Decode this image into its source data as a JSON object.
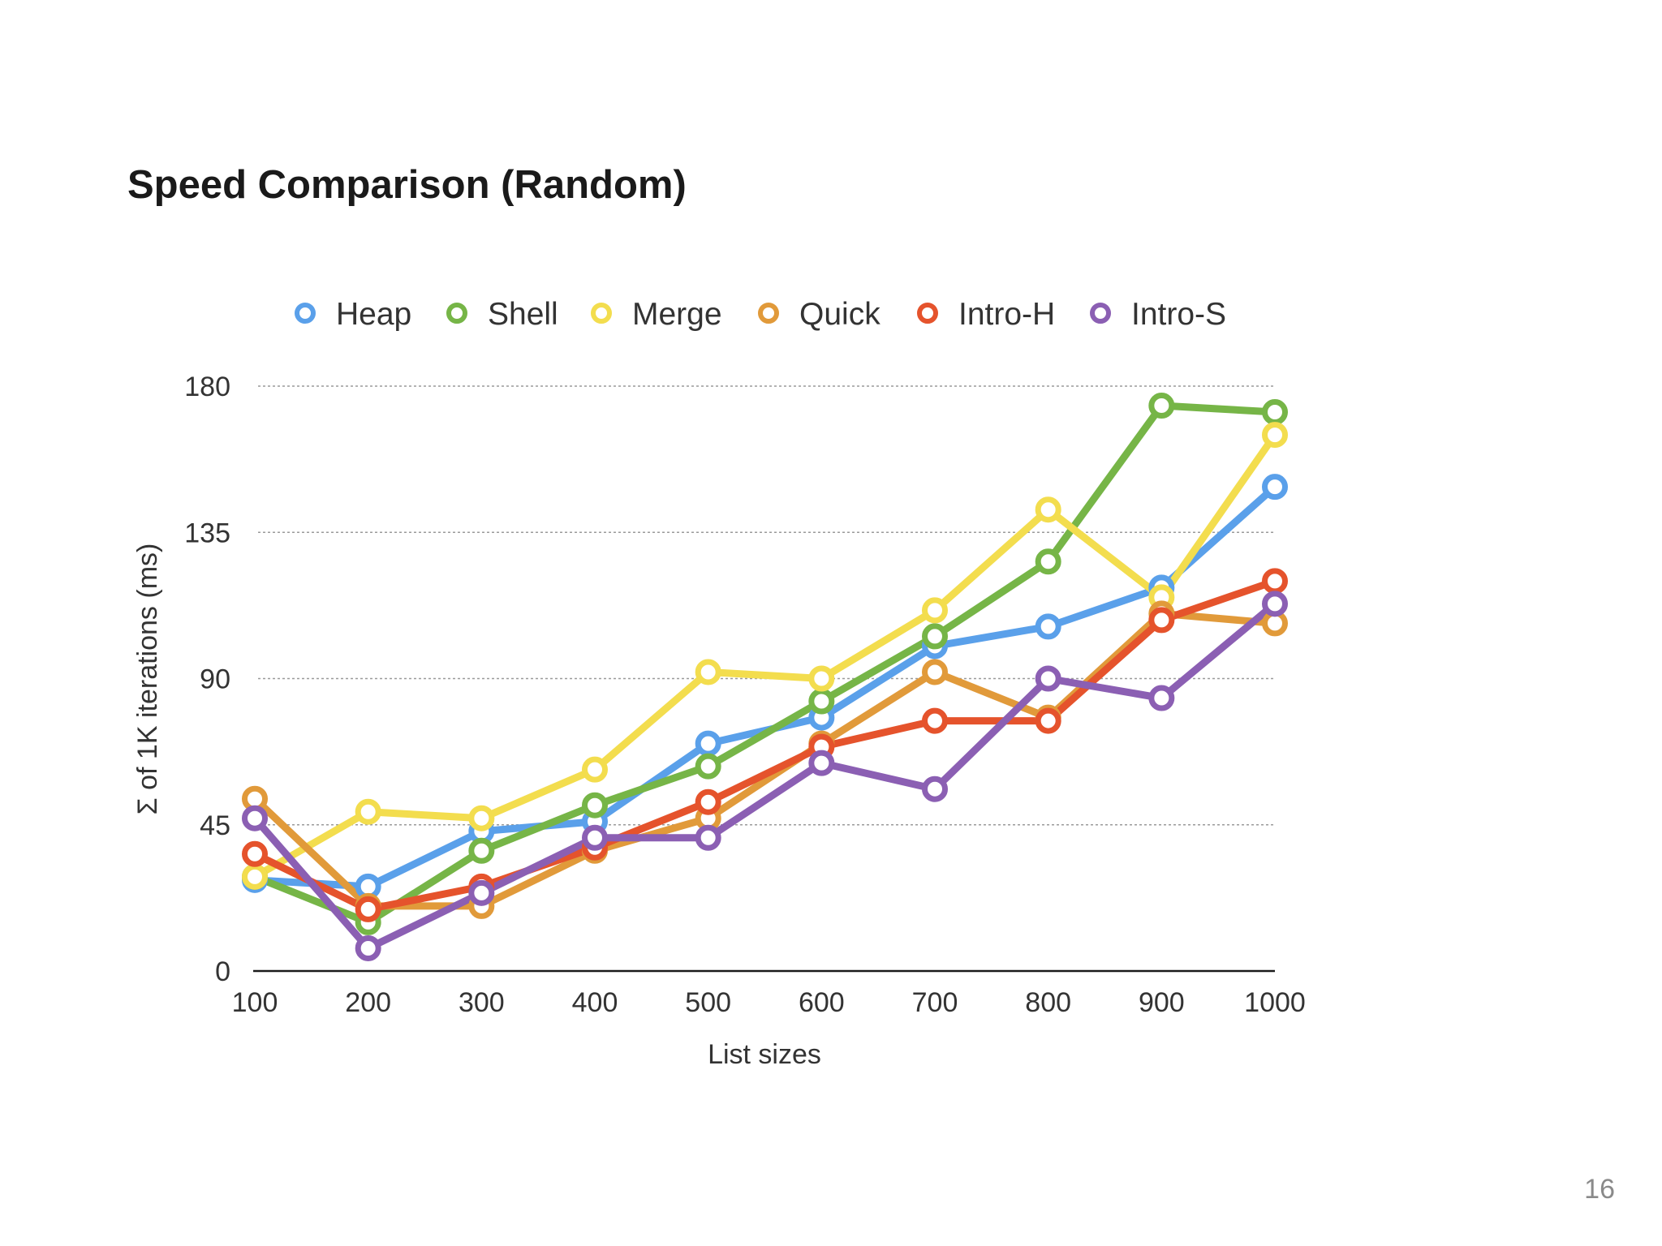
{
  "slide": {
    "title": "Speed Comparison (Random)",
    "page_number": "16"
  },
  "chart_data": {
    "type": "line",
    "title": "Speed Comparison (Random)",
    "xlabel": "List sizes",
    "ylabel": "Σ of 1K iterations (ms)",
    "categories": [
      "100",
      "200",
      "300",
      "400",
      "500",
      "600",
      "700",
      "800",
      "900",
      "1000"
    ],
    "yticks": [
      0,
      45,
      90,
      135,
      180
    ],
    "ylim": [
      0,
      180
    ],
    "grid": true,
    "legend_position": "top",
    "series": [
      {
        "name": "Heap",
        "color": "#5aa0ea",
        "values": [
          28,
          26,
          43,
          46,
          70,
          78,
          100,
          106,
          118,
          149
        ]
      },
      {
        "name": "Shell",
        "color": "#76b547",
        "values": [
          29,
          15,
          37,
          51,
          63,
          83,
          103,
          126,
          174,
          172
        ]
      },
      {
        "name": "Merge",
        "color": "#f3dd4e",
        "values": [
          29,
          49,
          47,
          62,
          92,
          90,
          111,
          142,
          115,
          165
        ]
      },
      {
        "name": "Quick",
        "color": "#e19a3a",
        "values": [
          53,
          20,
          20,
          37,
          47,
          70,
          92,
          78,
          110,
          107
        ]
      },
      {
        "name": "Intro-H",
        "color": "#e5532c",
        "values": [
          36,
          19,
          26,
          38,
          52,
          69,
          77,
          77,
          108,
          120
        ]
      },
      {
        "name": "Intro-S",
        "color": "#8b5fb3",
        "values": [
          47,
          7,
          24,
          41,
          41,
          64,
          56,
          90,
          84,
          113
        ]
      }
    ]
  }
}
